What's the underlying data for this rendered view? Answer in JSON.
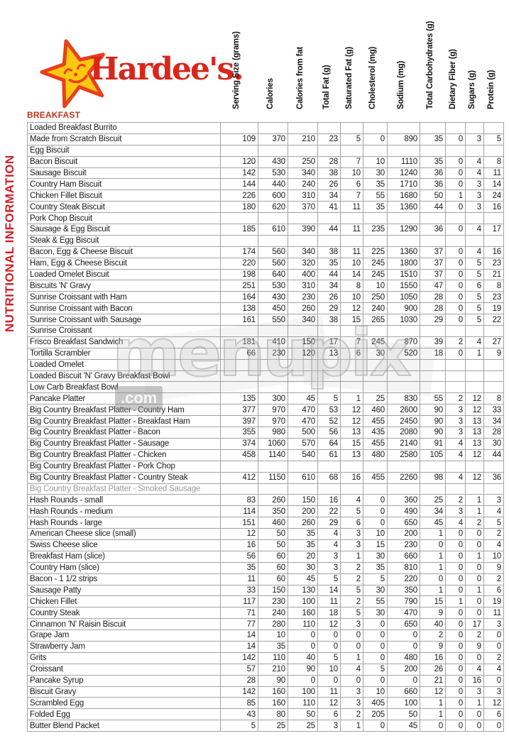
{
  "brand": {
    "logo_text": "Hardee's.",
    "star_icon": "smiling-star-icon",
    "logo_color": "#d9261c",
    "star_fill": "#ffc810",
    "star_outline": "#e8401c"
  },
  "side_label": "NUTRITIONAL INFORMATION",
  "section_label": "BREAKFAST",
  "watermark": {
    "text": "menupix",
    "suffix": ".com"
  },
  "colors": {
    "accent_red": "#cc2027",
    "section_red": "#c0361f",
    "grid_line": "#a3a3a3",
    "muted_text": "#9a9a9a"
  },
  "table": {
    "columns": [
      "Serving Size (grams)",
      "Calories",
      "Calories from fat",
      "Total Fat (g)",
      "Saturated Fat (g)",
      "Cholesterol (mg)",
      "Sodium (mg)",
      "Total Carbohydrates (g)",
      "Dietary Fiber (g)",
      "Sugars (g)",
      "Protein (g)"
    ],
    "rows": [
      {
        "name": "Loaded Breakfast Burrito",
        "values": []
      },
      {
        "name": "Made from Scratch Biscuit",
        "values": [
          109,
          370,
          210,
          23,
          5,
          0,
          890,
          35,
          0,
          3,
          5
        ]
      },
      {
        "name": "Egg Biscuit",
        "values": []
      },
      {
        "name": "Bacon Biscuit",
        "values": [
          120,
          430,
          250,
          28,
          7,
          10,
          1110,
          35,
          0,
          4,
          8
        ]
      },
      {
        "name": "Sausage Biscuit",
        "values": [
          142,
          530,
          340,
          38,
          10,
          30,
          1240,
          36,
          0,
          4,
          11
        ]
      },
      {
        "name": "Country Ham Biscuit",
        "values": [
          144,
          440,
          240,
          26,
          6,
          35,
          1710,
          36,
          0,
          3,
          14
        ]
      },
      {
        "name": "Chicken Fillet Biscuit",
        "values": [
          226,
          600,
          310,
          34,
          7,
          55,
          1680,
          50,
          1,
          3,
          24
        ]
      },
      {
        "name": "Country Steak Biscuit",
        "values": [
          180,
          620,
          370,
          41,
          11,
          35,
          1360,
          44,
          0,
          3,
          16
        ]
      },
      {
        "name": "Pork Chop Biscuit",
        "values": []
      },
      {
        "name": "Sausage & Egg Biscuit",
        "values": [
          185,
          610,
          390,
          44,
          11,
          235,
          1290,
          36,
          0,
          4,
          17
        ]
      },
      {
        "name": "Steak & Egg Biscuit",
        "values": []
      },
      {
        "name": "Bacon, Egg & Cheese Biscuit",
        "values": [
          174,
          560,
          340,
          38,
          11,
          225,
          1360,
          37,
          0,
          4,
          16
        ]
      },
      {
        "name": "Ham, Egg & Cheese Biscuit",
        "values": [
          220,
          560,
          320,
          35,
          10,
          245,
          1800,
          37,
          0,
          5,
          23
        ]
      },
      {
        "name": "Loaded Omelet Biscuit",
        "values": [
          198,
          640,
          400,
          44,
          14,
          245,
          1510,
          37,
          0,
          5,
          21
        ]
      },
      {
        "name": "Biscuits 'N' Gravy",
        "values": [
          251,
          530,
          310,
          34,
          8,
          10,
          1550,
          47,
          0,
          6,
          8
        ]
      },
      {
        "name": "Sunrise Croissant with Ham",
        "values": [
          164,
          430,
          230,
          26,
          10,
          250,
          1050,
          28,
          0,
          5,
          23
        ]
      },
      {
        "name": "Sunrise Croissant with Bacon",
        "values": [
          138,
          450,
          260,
          29,
          12,
          240,
          900,
          28,
          0,
          5,
          19
        ]
      },
      {
        "name": "Sunrise Croissant with Sausage",
        "values": [
          161,
          550,
          340,
          38,
          15,
          265,
          1030,
          29,
          0,
          5,
          22
        ]
      },
      {
        "name": "Sunrise Croissant",
        "values": []
      },
      {
        "name": "Frisco Breakfast Sandwich",
        "values": [
          181,
          410,
          150,
          17,
          7,
          245,
          870,
          39,
          2,
          4,
          27
        ]
      },
      {
        "name": "Tortilla Scrambler",
        "values": [
          66,
          230,
          120,
          13,
          6,
          30,
          520,
          18,
          0,
          1,
          9
        ]
      },
      {
        "name": "Loaded Omelet",
        "values": []
      },
      {
        "name": "Loaded Biscuit 'N' Gravy Breakfast Bowl",
        "values": []
      },
      {
        "name": "Low Carb Breakfast Bowl",
        "values": []
      },
      {
        "name": "Pancake Platter",
        "values": [
          135,
          300,
          45,
          5,
          1,
          25,
          830,
          55,
          2,
          12,
          8
        ]
      },
      {
        "name": "Big Country Breakfast Platter - Country Ham",
        "values": [
          377,
          970,
          470,
          53,
          12,
          460,
          2600,
          90,
          3,
          12,
          33
        ]
      },
      {
        "name": "Big Country Breakfast Platter - Breakfast Ham",
        "values": [
          397,
          970,
          470,
          52,
          12,
          455,
          2450,
          90,
          3,
          13,
          34
        ]
      },
      {
        "name": "Big Country Breakfast Platter - Bacon",
        "values": [
          355,
          980,
          500,
          56,
          13,
          435,
          2080,
          90,
          3,
          13,
          28
        ]
      },
      {
        "name": "Big Country Breakfast Platter - Sausage",
        "values": [
          374,
          1060,
          570,
          64,
          15,
          455,
          2140,
          91,
          4,
          13,
          30
        ]
      },
      {
        "name": "Big Country Breakfast Platter - Chicken",
        "values": [
          458,
          1140,
          540,
          61,
          13,
          480,
          2580,
          105,
          4,
          12,
          44
        ]
      },
      {
        "name": "Big Country Breakfast Platter - Pork Chop",
        "values": []
      },
      {
        "name": "Big Country Breakfast Platter - Country Steak",
        "values": [
          412,
          1150,
          610,
          68,
          16,
          455,
          2260,
          98,
          4,
          12,
          36
        ]
      },
      {
        "name": "Big Country Breakfast Platter - Smoked Sausage",
        "values": [],
        "muted": true
      },
      {
        "name": "Hash Rounds - small",
        "values": [
          83,
          260,
          150,
          16,
          4,
          0,
          360,
          25,
          2,
          1,
          3
        ]
      },
      {
        "name": "Hash Rounds - medium",
        "values": [
          114,
          350,
          200,
          22,
          5,
          0,
          490,
          34,
          3,
          1,
          4
        ]
      },
      {
        "name": "Hash Rounds - large",
        "values": [
          151,
          460,
          260,
          29,
          6,
          0,
          650,
          45,
          4,
          2,
          5
        ]
      },
      {
        "name": "American Cheese slice (small)",
        "values": [
          12,
          50,
          35,
          4,
          3,
          10,
          200,
          1,
          0,
          0,
          2
        ]
      },
      {
        "name": "Swiss Cheese slice",
        "values": [
          16,
          50,
          35,
          4,
          3,
          15,
          230,
          0,
          0,
          0,
          4
        ]
      },
      {
        "name": "Breakfast Ham (slice)",
        "values": [
          56,
          60,
          20,
          3,
          1,
          30,
          660,
          1,
          0,
          1,
          10
        ]
      },
      {
        "name": "Country Ham (slice)",
        "values": [
          35,
          60,
          30,
          3,
          2,
          35,
          810,
          1,
          0,
          0,
          9
        ]
      },
      {
        "name": "Bacon - 1 1/2 strips",
        "values": [
          11,
          60,
          45,
          5,
          2,
          5,
          220,
          0,
          0,
          0,
          2
        ]
      },
      {
        "name": "Sausage Patty",
        "values": [
          33,
          150,
          130,
          14,
          5,
          30,
          350,
          1,
          0,
          1,
          6
        ]
      },
      {
        "name": "Chicken Fillet",
        "values": [
          117,
          230,
          100,
          11,
          2,
          55,
          790,
          15,
          1,
          0,
          19
        ]
      },
      {
        "name": "Country Steak",
        "values": [
          71,
          240,
          160,
          18,
          5,
          30,
          470,
          9,
          0,
          0,
          11
        ]
      },
      {
        "name": "Cinnamon 'N' Raisin Biscuit",
        "values": [
          77,
          280,
          110,
          12,
          3,
          0,
          650,
          40,
          0,
          17,
          3
        ]
      },
      {
        "name": "Grape Jam",
        "values": [
          14,
          10,
          0,
          0,
          0,
          0,
          0,
          2,
          0,
          2,
          0
        ]
      },
      {
        "name": "Strawberry Jam",
        "values": [
          14,
          35,
          0,
          0,
          0,
          0,
          0,
          9,
          0,
          9,
          0
        ]
      },
      {
        "name": "Grits",
        "values": [
          142,
          110,
          40,
          5,
          1,
          0,
          480,
          16,
          0,
          0,
          2
        ]
      },
      {
        "name": "Croissant",
        "values": [
          57,
          210,
          90,
          10,
          4,
          5,
          200,
          26,
          0,
          4,
          4
        ]
      },
      {
        "name": "Pancake Syrup",
        "values": [
          28,
          90,
          0,
          0,
          0,
          0,
          0,
          21,
          0,
          16,
          0
        ]
      },
      {
        "name": "Biscuit Gravy",
        "values": [
          142,
          160,
          100,
          11,
          3,
          10,
          660,
          12,
          0,
          3,
          3
        ]
      },
      {
        "name": "Scrambled Egg",
        "values": [
          85,
          160,
          110,
          12,
          3,
          405,
          100,
          1,
          0,
          1,
          12
        ]
      },
      {
        "name": "Folded Egg",
        "values": [
          43,
          80,
          50,
          6,
          2,
          205,
          50,
          1,
          0,
          0,
          6
        ]
      },
      {
        "name": "Butter Blend Packet",
        "values": [
          5,
          25,
          25,
          3,
          1,
          0,
          45,
          0,
          0,
          0,
          0
        ]
      }
    ]
  }
}
